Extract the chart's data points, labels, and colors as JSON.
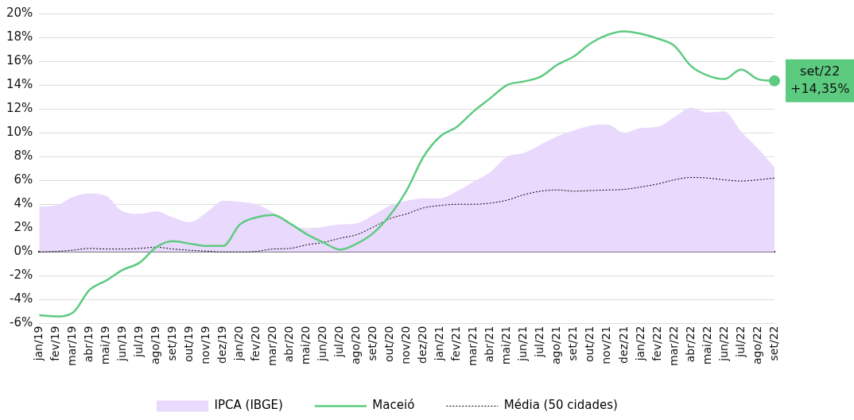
{
  "chart_data": {
    "type": "line",
    "categories": [
      "jan/19",
      "fev/19",
      "mar/19",
      "abr/19",
      "mai/19",
      "jun/19",
      "jul/19",
      "ago/19",
      "set/19",
      "out/19",
      "nov/19",
      "dez/19",
      "jan/20",
      "fev/20",
      "mar/20",
      "abr/20",
      "mai/20",
      "jun/20",
      "jul/20",
      "ago/20",
      "set/20",
      "out/20",
      "nov/20",
      "dez/20",
      "jan/21",
      "fev/21",
      "mar/21",
      "abr/21",
      "mai/21",
      "jun/21",
      "jul/21",
      "ago/21",
      "set/21",
      "out/21",
      "nov/21",
      "dez/21",
      "jan/22",
      "fev/22",
      "mar/22",
      "abr/22",
      "mai/22",
      "jun/22",
      "jul/22",
      "ago/22",
      "set/22"
    ],
    "series": [
      {
        "name": "IPCA (IBGE)",
        "type": "area",
        "color": "#e9d9fd",
        "values": [
          3.8,
          3.9,
          4.6,
          4.9,
          4.7,
          3.4,
          3.2,
          3.4,
          2.9,
          2.5,
          3.3,
          4.3,
          4.2,
          4.0,
          3.3,
          2.4,
          1.9,
          2.1,
          2.3,
          2.4,
          3.1,
          3.9,
          4.3,
          4.5,
          4.5,
          5.1,
          5.9,
          6.7,
          8.0,
          8.3,
          9.0,
          9.7,
          10.2,
          10.6,
          10.7,
          10.0,
          10.4,
          10.5,
          11.3,
          12.1,
          11.7,
          11.8,
          10.1,
          8.7,
          7.1
        ]
      },
      {
        "name": "Maceió",
        "type": "line",
        "color": "#5ccb80",
        "values": [
          -5.3,
          -5.4,
          -5.1,
          -3.2,
          -2.4,
          -1.5,
          -0.9,
          0.4,
          0.9,
          0.7,
          0.5,
          0.5,
          2.3,
          2.9,
          3.1,
          2.4,
          1.5,
          0.8,
          0.2,
          0.7,
          1.6,
          3.1,
          5.2,
          8.0,
          9.7,
          10.5,
          11.8,
          12.9,
          14.0,
          14.3,
          14.7,
          15.7,
          16.4,
          17.5,
          18.2,
          18.5,
          18.3,
          17.9,
          17.3,
          15.6,
          14.8,
          14.5,
          15.3,
          14.5,
          14.35
        ]
      },
      {
        "name": "Média (50 cidades)",
        "type": "line",
        "color": "#000000",
        "line_style": "dotted",
        "values": [
          0,
          0.05,
          0.15,
          0.3,
          0.25,
          0.25,
          0.3,
          0.4,
          0.25,
          0.15,
          0.07,
          0,
          0,
          0.05,
          0.25,
          0.3,
          0.6,
          0.8,
          1.15,
          1.45,
          2.1,
          2.8,
          3.2,
          3.7,
          3.9,
          4.0,
          4.0,
          4.1,
          4.35,
          4.8,
          5.1,
          5.2,
          5.1,
          5.15,
          5.2,
          5.25,
          5.45,
          5.7,
          6.05,
          6.25,
          6.2,
          6.05,
          5.95,
          6.05,
          6.2
        ]
      }
    ],
    "ylim": [
      -6,
      20
    ],
    "yticks": [
      {
        "value": -6,
        "label": "-6%"
      },
      {
        "value": -4,
        "label": "-4%"
      },
      {
        "value": -2,
        "label": "-2%"
      },
      {
        "value": 0,
        "label": "0%"
      },
      {
        "value": 2,
        "label": "2%"
      },
      {
        "value": 4,
        "label": "4%"
      },
      {
        "value": 6,
        "label": "6%"
      },
      {
        "value": 8,
        "label": "8%"
      },
      {
        "value": 10,
        "label": "10%"
      },
      {
        "value": 12,
        "label": "12%"
      },
      {
        "value": 14,
        "label": "14%"
      },
      {
        "value": 16,
        "label": "16%"
      },
      {
        "value": 18,
        "label": "18%"
      },
      {
        "value": 20,
        "label": "20%"
      }
    ],
    "grid": "y",
    "legend": "bottom",
    "marker": "none",
    "annotations": [
      {
        "text": "set/22\n+14,35%",
        "x": "set/22",
        "y": 14.35
      }
    ]
  }
}
